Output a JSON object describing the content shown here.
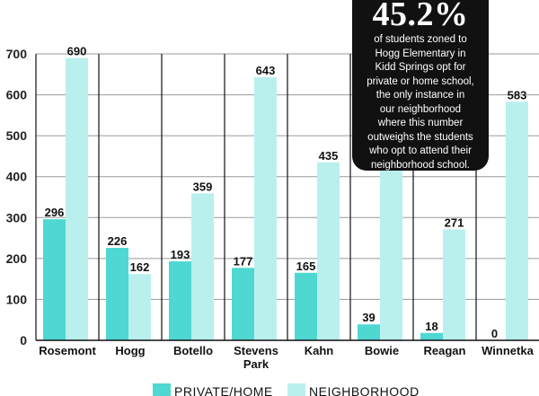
{
  "chart_data": {
    "type": "bar",
    "categories": [
      "Rosemont",
      "Hogg",
      "Botello",
      "Stevens Park",
      "Kahn",
      "Bowie",
      "Reagan",
      "Winnetka"
    ],
    "category_lines": [
      [
        "Rosemont"
      ],
      [
        "Hogg"
      ],
      [
        "Botello"
      ],
      [
        "Stevens",
        "Park"
      ],
      [
        "Kahn"
      ],
      [
        "Bowie"
      ],
      [
        "Reagan"
      ],
      [
        "Winnetka"
      ]
    ],
    "series": [
      {
        "name": "PRIVATE/HOME",
        "color": "#4fd8d2",
        "values": [
          296,
          226,
          193,
          177,
          165,
          39,
          18,
          0
        ]
      },
      {
        "name": "NEIGHBORHOOD",
        "color": "#b9f0ee",
        "values": [
          690,
          162,
          359,
          643,
          435,
          417,
          271,
          583
        ]
      }
    ],
    "yticks": [
      0,
      100,
      200,
      300,
      400,
      500,
      600,
      700
    ],
    "ylim": [
      0,
      700
    ],
    "legend_position": "bottom",
    "title": "",
    "xlabel": "",
    "ylabel": ""
  },
  "callout": {
    "stat": "45.2%",
    "lines": [
      "of students zoned to",
      "Hogg Elementary in",
      "Kidd Springs opt for",
      "private or home school,",
      "the only instance in",
      "our neighborhood",
      "where this number",
      "outweighs the students",
      "who opt to attend their",
      "neighborhood school."
    ]
  }
}
